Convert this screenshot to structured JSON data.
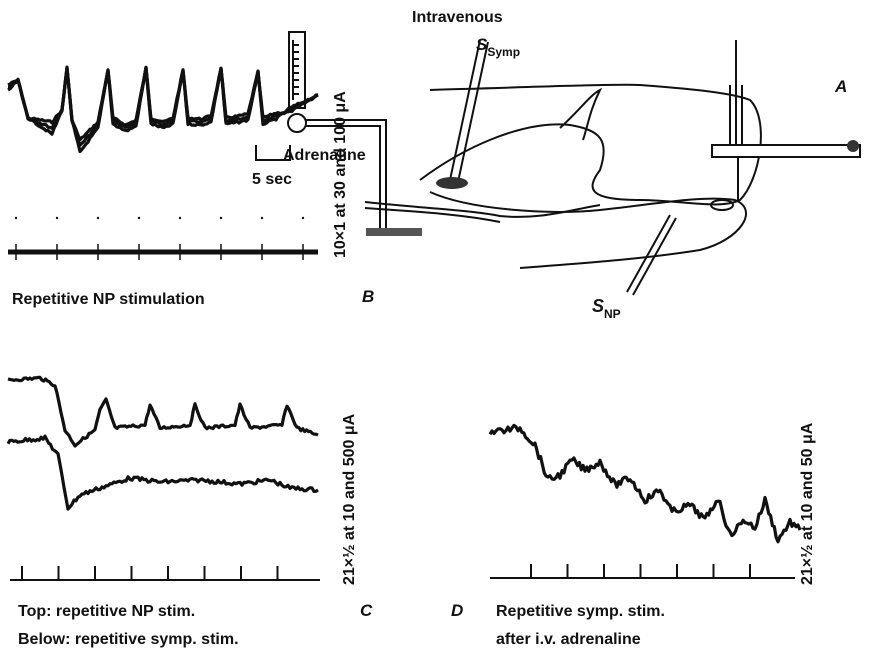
{
  "panel_a": {
    "label": "A",
    "top_label": "Intravenous",
    "side_label": "Adrenaline",
    "symp_electrode": {
      "symbol": "S",
      "subscript": "Symp"
    },
    "np_electrode": {
      "symbol": "S",
      "subscript": "NP"
    }
  },
  "panel_b": {
    "label": "B",
    "scale_bar": "5 sec",
    "stimulus": "10×1 at 30 and 100 μA",
    "caption": "Repetitive NP stimulation"
  },
  "panel_c": {
    "label": "C",
    "stimulus": "21×½ at 10 and 500 μA",
    "caption_top": "Top: repetitive NP stim.",
    "caption_bottom": "Below: repetitive symp. stim."
  },
  "panel_d": {
    "label": "D",
    "stimulus": "21×½ at 10 and 50 μA",
    "caption_top": "Repetitive symp. stim.",
    "caption_bottom": "after i.v. adrenaline"
  }
}
